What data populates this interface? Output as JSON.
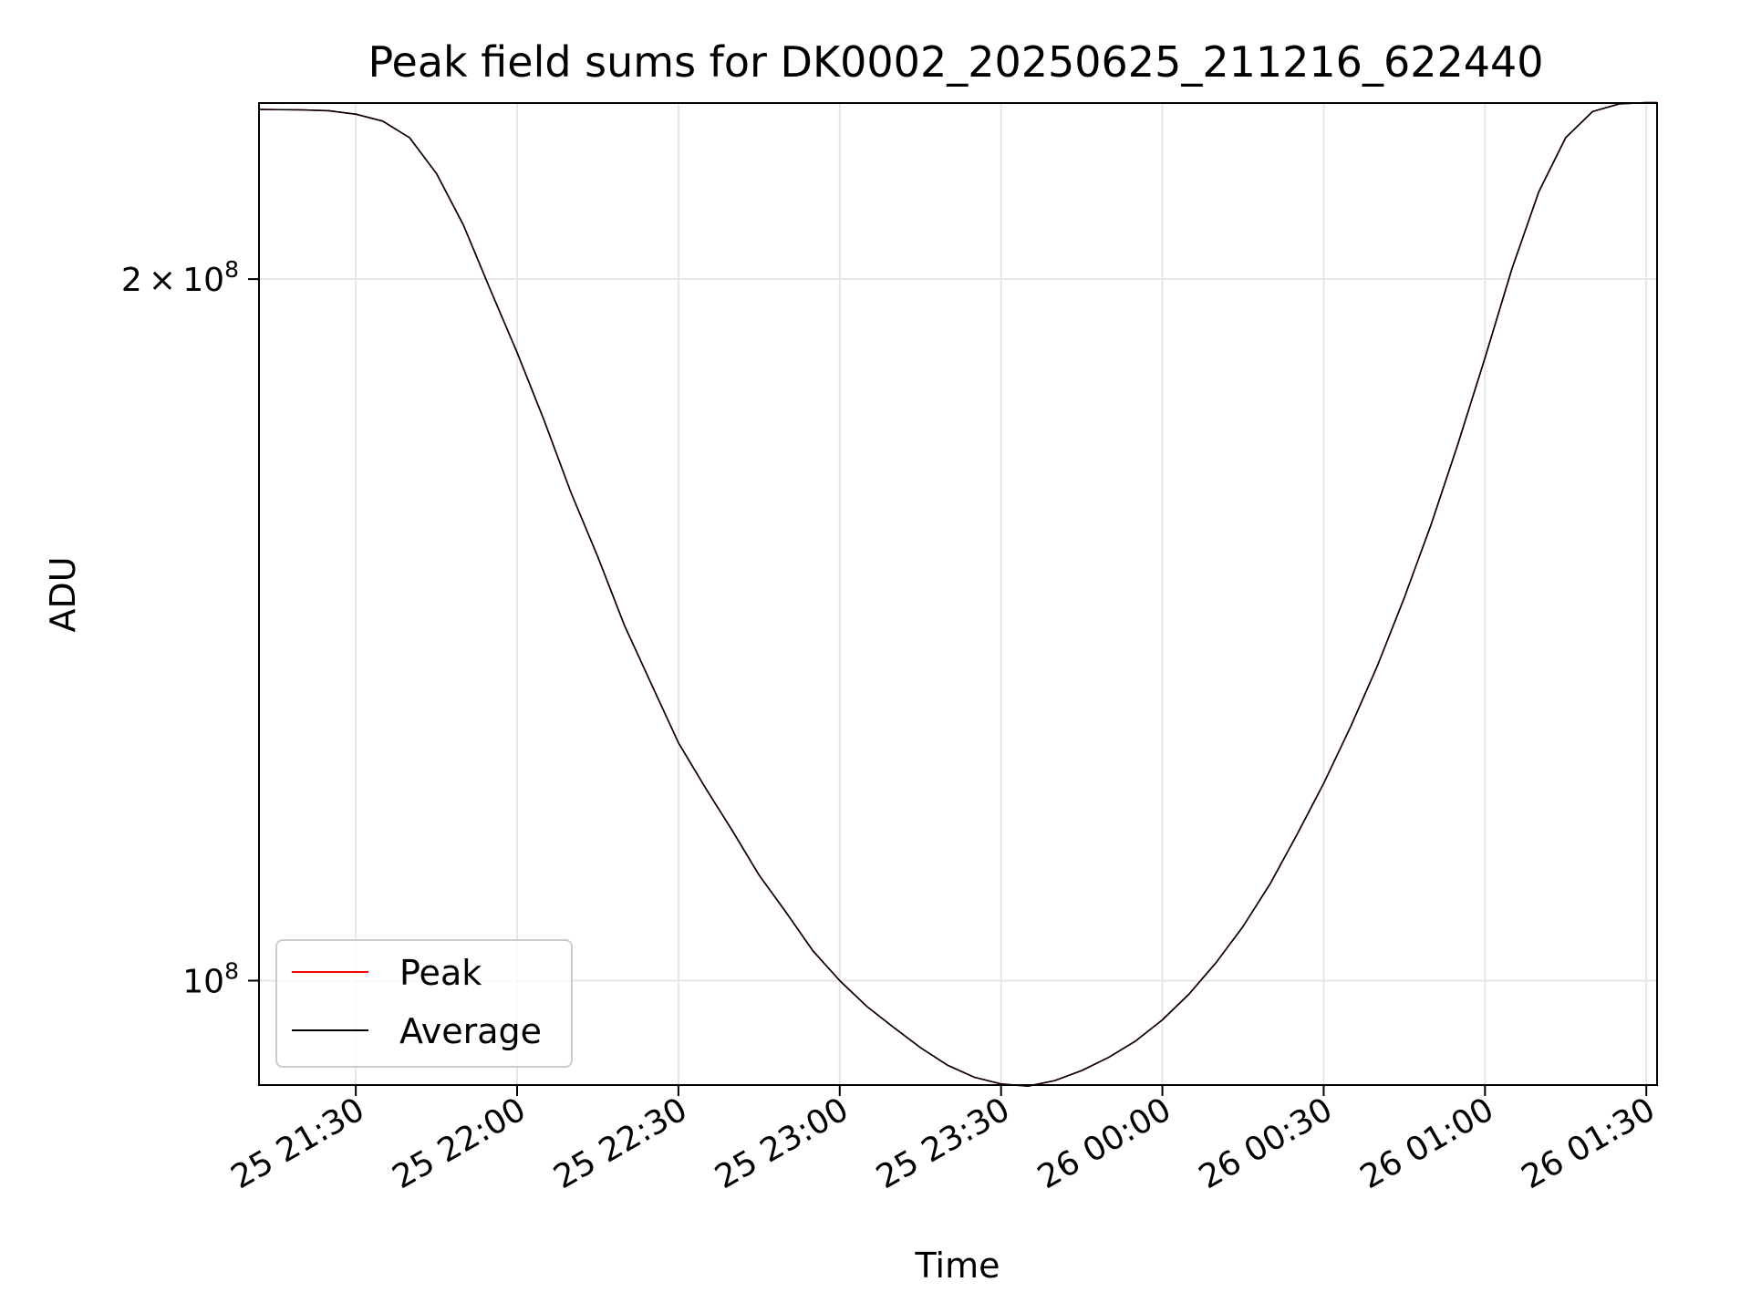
{
  "chart_data": {
    "type": "line",
    "title": "Peak field sums for DK0002_20250625_211216_622440",
    "xlabel": "Time",
    "ylabel": "ADU",
    "y_scale": "log",
    "grid": true,
    "legend_placement": "lower-left",
    "xlim": [
      "2025-06-25 21:12",
      "2025-06-26 01:32"
    ],
    "ylim": [
      90200000,
      238000000
    ],
    "x_ticks": [
      "2025-06-25 21:30",
      "2025-06-25 22:00",
      "2025-06-25 22:30",
      "2025-06-25 23:00",
      "2025-06-25 23:30",
      "2025-06-26 00:00",
      "2025-06-26 00:30",
      "2025-06-26 01:00",
      "2025-06-26 01:30"
    ],
    "x_tick_labels": [
      "25 21:30",
      "25 22:00",
      "25 22:30",
      "25 23:00",
      "25 23:30",
      "26 00:00",
      "26 00:30",
      "26 01:00",
      "26 01:30"
    ],
    "y_major_ticks": [
      100000000,
      200000000
    ],
    "y_tick_labels": [
      {
        "mantissa": "",
        "base": "10",
        "exponent": "8"
      },
      {
        "mantissa": "2 × ",
        "base": "10",
        "exponent": "8"
      }
    ],
    "y_minor_ticks": [
      90000000
    ],
    "x": [
      "2025-06-25 21:12",
      "2025-06-25 21:20",
      "2025-06-25 21:25",
      "2025-06-25 21:30",
      "2025-06-25 21:35",
      "2025-06-25 21:40",
      "2025-06-25 21:45",
      "2025-06-25 21:50",
      "2025-06-25 21:55",
      "2025-06-25 22:00",
      "2025-06-25 22:05",
      "2025-06-25 22:10",
      "2025-06-25 22:15",
      "2025-06-25 22:20",
      "2025-06-25 22:25",
      "2025-06-25 22:30",
      "2025-06-25 22:35",
      "2025-06-25 22:40",
      "2025-06-25 22:45",
      "2025-06-25 22:50",
      "2025-06-25 22:55",
      "2025-06-25 23:00",
      "2025-06-25 23:05",
      "2025-06-25 23:10",
      "2025-06-25 23:15",
      "2025-06-25 23:20",
      "2025-06-25 23:25",
      "2025-06-25 23:30",
      "2025-06-25 23:35",
      "2025-06-25 23:40",
      "2025-06-25 23:45",
      "2025-06-25 23:50",
      "2025-06-25 23:55",
      "2025-06-26 00:00",
      "2025-06-26 00:05",
      "2025-06-26 00:10",
      "2025-06-26 00:15",
      "2025-06-26 00:20",
      "2025-06-26 00:25",
      "2025-06-26 00:30",
      "2025-06-26 00:35",
      "2025-06-26 00:40",
      "2025-06-26 00:45",
      "2025-06-26 00:50",
      "2025-06-26 00:55",
      "2025-06-26 01:00",
      "2025-06-26 01:05",
      "2025-06-26 01:10",
      "2025-06-26 01:15",
      "2025-06-26 01:20",
      "2025-06-26 01:25",
      "2025-06-26 01:30",
      "2025-06-26 01:32"
    ],
    "series": [
      {
        "name": "Peak",
        "color": "#ff0000",
        "values": [
          236500000,
          236400000,
          236200000,
          235400000,
          233800000,
          230000000,
          222000000,
          211000000,
          198000000,
          186000000,
          174000000,
          162000000,
          152000000,
          142000000,
          134000000,
          126500000,
          121000000,
          116000000,
          111000000,
          107000000,
          103000000,
          100000000,
          97500000,
          95500000,
          93600000,
          92000000,
          90900000,
          90300000,
          90100000,
          90600000,
          91500000,
          92700000,
          94200000,
          96200000,
          98700000,
          101800000,
          105500000,
          110000000,
          115500000,
          121500000,
          128500000,
          136500000,
          146000000,
          157000000,
          170000000,
          185000000,
          202000000,
          218000000,
          230000000,
          236000000,
          237800000,
          238100000,
          238100000
        ]
      },
      {
        "name": "Average",
        "color": "#000000",
        "values": [
          236500000,
          236400000,
          236200000,
          235400000,
          233800000,
          230000000,
          222000000,
          211000000,
          198000000,
          186000000,
          174000000,
          162000000,
          152000000,
          142000000,
          134000000,
          126500000,
          121000000,
          116000000,
          111000000,
          107000000,
          103000000,
          100000000,
          97500000,
          95500000,
          93600000,
          92000000,
          90900000,
          90300000,
          90100000,
          90600000,
          91500000,
          92700000,
          94200000,
          96200000,
          98700000,
          101800000,
          105500000,
          110000000,
          115500000,
          121500000,
          128500000,
          136500000,
          146000000,
          157000000,
          170000000,
          185000000,
          202000000,
          218000000,
          230000000,
          236000000,
          237800000,
          238100000,
          238100000
        ]
      }
    ]
  }
}
